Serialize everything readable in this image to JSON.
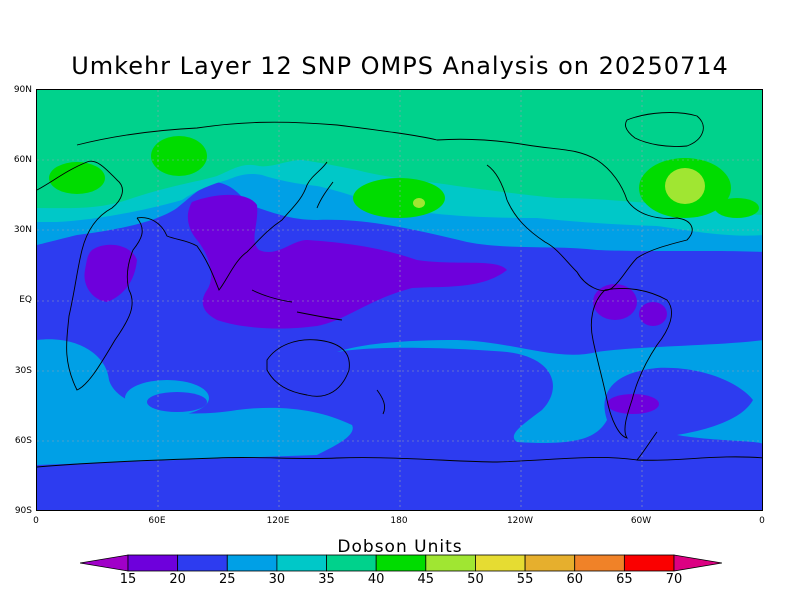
{
  "title": "Umkehr Layer 12 SNP OMPS Analysis on 20250714",
  "y_axis_labels": [
    "90N",
    "60N",
    "30N",
    "EQ",
    "30S",
    "60S",
    "90S"
  ],
  "x_axis_labels": [
    "0",
    "60E",
    "120E",
    "180",
    "120W",
    "60W",
    "0"
  ],
  "colorbar": {
    "title": "Dobson Units",
    "labels": [
      "15",
      "20",
      "25",
      "30",
      "35",
      "40",
      "45",
      "50",
      "55",
      "60",
      "65",
      "70"
    ],
    "colors": [
      "#a000c8",
      "#6e00dc",
      "#2d3cf0",
      "#00a0e6",
      "#00c8c8",
      "#00d28c",
      "#00dc00",
      "#a0e632",
      "#e6dc32",
      "#e6af2d",
      "#f08228",
      "#fa0000",
      "#dc0082"
    ]
  },
  "field_colors": {
    "15_20": "#6e00dc",
    "20_25": "#2d3cf0",
    "25_30": "#00a0e6",
    "30_35": "#00c8c8",
    "35_40": "#00d28c",
    "40_45": "#00dc00",
    "45_50": "#a0e632"
  }
}
